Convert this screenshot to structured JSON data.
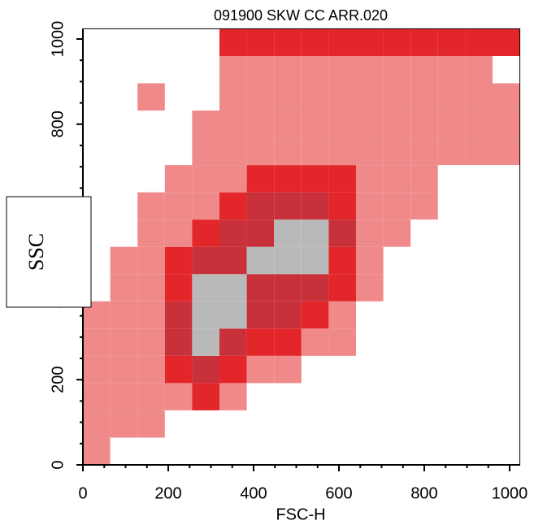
{
  "chart_data": {
    "type": "heatmap",
    "title": "091900 SKW CC ARR.020",
    "x_label": "FSC-H",
    "y_label": "SSC",
    "xlim": [
      0,
      1024
    ],
    "ylim": [
      0,
      1024
    ],
    "xticks": [
      0,
      200,
      400,
      600,
      800,
      1000
    ],
    "yticks": [
      0,
      200,
      400,
      600,
      800,
      1000
    ],
    "xbins": [
      0,
      64,
      128,
      192,
      256,
      320,
      384,
      448,
      512,
      576,
      640,
      704,
      768,
      832,
      896,
      960,
      1024
    ],
    "ybins": [
      0,
      64,
      128,
      192,
      256,
      320,
      384,
      448,
      512,
      576,
      640,
      704,
      768,
      832,
      896,
      960,
      1024
    ],
    "level_colors": [
      "#ffffff",
      "#f08a8a",
      "#e3262a",
      "#c8303a",
      "#b9b9b9"
    ],
    "values": [
      [
        1,
        0,
        0,
        0,
        0,
        0,
        0,
        0,
        0,
        0,
        0,
        0,
        0,
        0,
        0,
        0
      ],
      [
        1,
        1,
        1,
        0,
        0,
        0,
        0,
        0,
        0,
        0,
        0,
        0,
        0,
        0,
        0,
        0
      ],
      [
        1,
        1,
        1,
        1,
        2,
        1,
        0,
        0,
        0,
        0,
        0,
        0,
        0,
        0,
        0,
        0
      ],
      [
        1,
        1,
        1,
        2,
        3,
        2,
        1,
        1,
        0,
        0,
        0,
        0,
        0,
        0,
        0,
        0
      ],
      [
        1,
        1,
        1,
        3,
        4,
        3,
        2,
        2,
        1,
        1,
        0,
        0,
        0,
        0,
        0,
        0
      ],
      [
        1,
        1,
        1,
        3,
        4,
        4,
        3,
        3,
        2,
        1,
        0,
        0,
        0,
        0,
        0,
        0
      ],
      [
        0,
        1,
        1,
        2,
        4,
        4,
        3,
        3,
        3,
        2,
        1,
        0,
        0,
        0,
        0,
        0
      ],
      [
        0,
        1,
        1,
        2,
        3,
        3,
        4,
        4,
        4,
        2,
        1,
        0,
        0,
        0,
        0,
        0
      ],
      [
        0,
        0,
        1,
        1,
        2,
        3,
        3,
        4,
        4,
        3,
        1,
        1,
        0,
        0,
        0,
        0
      ],
      [
        0,
        0,
        1,
        1,
        1,
        2,
        3,
        3,
        3,
        2,
        1,
        1,
        1,
        0,
        0,
        0
      ],
      [
        0,
        0,
        0,
        1,
        1,
        1,
        2,
        2,
        2,
        2,
        1,
        1,
        1,
        0,
        0,
        0
      ],
      [
        0,
        0,
        0,
        0,
        1,
        1,
        1,
        1,
        1,
        1,
        1,
        1,
        1,
        1,
        1,
        1
      ],
      [
        0,
        0,
        0,
        0,
        1,
        1,
        1,
        1,
        1,
        1,
        1,
        1,
        1,
        1,
        1,
        1
      ],
      [
        0,
        0,
        1,
        0,
        0,
        1,
        1,
        1,
        1,
        1,
        1,
        1,
        1,
        1,
        1,
        1
      ],
      [
        0,
        0,
        0,
        0,
        0,
        1,
        1,
        1,
        1,
        1,
        1,
        1,
        1,
        1,
        1,
        0
      ],
      [
        0,
        0,
        0,
        0,
        0,
        2,
        2,
        2,
        2,
        2,
        2,
        2,
        2,
        2,
        2,
        2
      ]
    ]
  }
}
